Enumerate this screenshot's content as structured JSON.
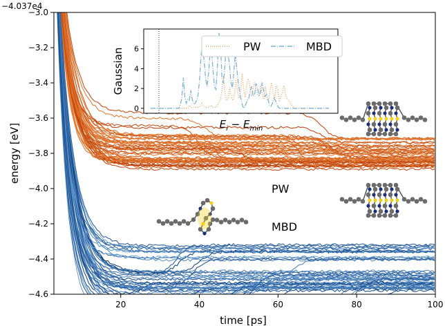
{
  "chart_data": [
    {
      "type": "line",
      "xlabel": "time  [ps]",
      "ylabel": "energy  [eV]",
      "offset_text": "−4.037e4",
      "xlim": [
        3,
        100
      ],
      "ylim": [
        -4.6,
        -3.0
      ],
      "xticks": [
        20,
        40,
        60,
        80,
        100
      ],
      "yticks": [
        -4.6,
        -4.4,
        -4.2,
        -4.0,
        -3.8,
        -3.6,
        -3.4,
        -3.2,
        -3.0
      ],
      "xtick_labels": [
        "20",
        "40",
        "60",
        "80",
        "100"
      ],
      "ytick_labels": [
        "−4.6",
        "−4.4",
        "−4.2",
        "−4.0",
        "−3.8",
        "−3.6",
        "−3.4",
        "−3.2",
        "−3.0"
      ],
      "annotations": [
        "PW",
        "MBD"
      ],
      "series": [
        {
          "name": "PW",
          "color_range": [
            "#f08a3a",
            "#b83a05"
          ],
          "trajectory_count": 48,
          "plateau_levels": [
            -3.72,
            -3.75,
            -3.78,
            -3.8,
            -3.82,
            -3.83,
            -3.84,
            -3.85,
            -3.86,
            -3.88
          ],
          "late_transition_times": [
            40,
            45,
            52,
            58,
            63,
            68,
            72,
            80
          ]
        },
        {
          "name": "MBD",
          "color_range": [
            "#6fa8dc",
            "#0b3d80"
          ],
          "trajectory_count": 48,
          "plateau_levels": [
            -4.33,
            -4.36,
            -4.4,
            -4.48,
            -4.5,
            -4.52,
            -4.54,
            -4.55,
            -4.56,
            -4.57
          ],
          "late_transition_times": [
            28,
            33,
            38,
            42,
            47,
            52,
            56,
            62,
            70,
            78,
            90
          ]
        }
      ]
    },
    {
      "type": "line",
      "xlabel": "E_i − E_min",
      "ylabel": "Gaussian",
      "yticks": [
        0,
        2,
        4,
        6
      ],
      "ytick_labels": [
        "0",
        "2",
        "4",
        "6"
      ],
      "ylim": [
        -0.5,
        8
      ],
      "legend_position": "top",
      "series": [
        {
          "name": "PW",
          "color": "#f0a060",
          "style": "dotted",
          "values": [
            0,
            0,
            0,
            0,
            0,
            0,
            0,
            0,
            0,
            0,
            0,
            0,
            0,
            0,
            0,
            0,
            0,
            0,
            0,
            0,
            0,
            0,
            0,
            0,
            0,
            0.3,
            0.1,
            0.1,
            0.1,
            0.1,
            0.1,
            0.1,
            0.2,
            0.5,
            0.3,
            0.1,
            0.1,
            0.1,
            0.2,
            0.3,
            0.1,
            0.1,
            0.1,
            0.3,
            0.6,
            0.9,
            1.8,
            3.3,
            1.5,
            0.8,
            1.0,
            2.1,
            1.2,
            0.8,
            1.3,
            3.0,
            1.8,
            1.0,
            1.6,
            3.5,
            2.0,
            1.1,
            2.4,
            3.0,
            2.2,
            1.2,
            1.8,
            2.6,
            2.0,
            1.4,
            1.2,
            2.3,
            1.6,
            0.9,
            2.2,
            1.0,
            0.8,
            1.7,
            2.6,
            1.5,
            1.0,
            2.3,
            1.9,
            0.8,
            1.2,
            1.6,
            2.3,
            1.4,
            1.0,
            0.8,
            0.5,
            0.3,
            0.1,
            0,
            0,
            0,
            0,
            0,
            0,
            0,
            0,
            0,
            0,
            0,
            0,
            0,
            0,
            0,
            0,
            0,
            0,
            0,
            0,
            0,
            0,
            0
          ]
        },
        {
          "name": "MBD",
          "color": "#7fb3d5",
          "style": "dashdot",
          "values": [
            0,
            0,
            0,
            0,
            0,
            0,
            0,
            0,
            0,
            0,
            0,
            0,
            0,
            0,
            0,
            0,
            0,
            0,
            0,
            0,
            0.4,
            1.0,
            3.1,
            1.2,
            0.5,
            0.9,
            0.8,
            1.8,
            0.9,
            0.4,
            0.5,
            0.8,
            1.4,
            3.0,
            5.4,
            6.6,
            4.8,
            3.0,
            2.2,
            3.6,
            5.6,
            6.0,
            3.8,
            2.2,
            1.9,
            4.5,
            7.6,
            6.6,
            3.0,
            2.5,
            4.3,
            7.0,
            5.5,
            4.6,
            2.7,
            2.0,
            3.7,
            5.5,
            4.0,
            2.5,
            1.6,
            0.8,
            0.2,
            0,
            0.4,
            0.8,
            1.0,
            1.8,
            2.2,
            1.2,
            1.4,
            2.5,
            2.0,
            1.3,
            1.6,
            2.6,
            1.8,
            1.2,
            1.4,
            0.9,
            0.3,
            0.2,
            0.5,
            1.0,
            0.8,
            0.4,
            0.1,
            0,
            0,
            0,
            0,
            0,
            0,
            0,
            0,
            0,
            0,
            0,
            0,
            0,
            0,
            0,
            0,
            0,
            0,
            0,
            0,
            0,
            0,
            0,
            0,
            0,
            0,
            0,
            0,
            0,
            0,
            0,
            0,
            0,
            0
          ]
        }
      ]
    }
  ],
  "legend": {
    "pw_label": "PW",
    "mbd_label": "MBD"
  },
  "labels": {
    "pw": "PW",
    "mbd": "MBD",
    "inset_xlabel_main": "E",
    "inset_xlabel_sub_i": "i",
    "inset_xlabel_sub_min": "min"
  },
  "molecule_icons": [
    "helix-molecule-pw",
    "helix-molecule-mbd",
    "folded-molecule-pw",
    "folded-molecule-mbd"
  ]
}
